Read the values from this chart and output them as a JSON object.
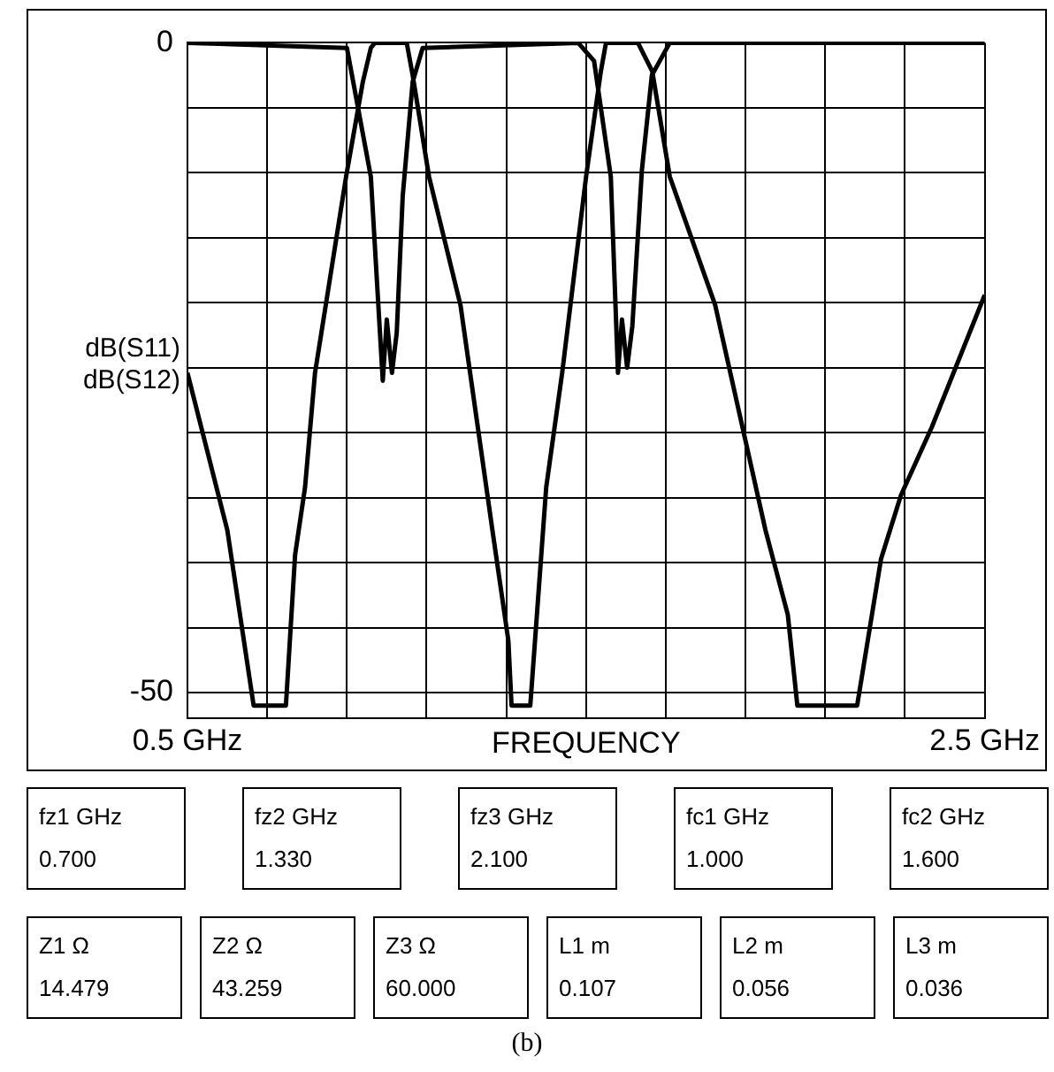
{
  "chart_data": {
    "type": "line",
    "xlabel": "FREQUENCY",
    "ylabel": "dB(S11)\ndB(S12)",
    "xlim": [
      0.5,
      2.5
    ],
    "xticks": [
      {
        "value": 0.5,
        "label": "0.5 GHz"
      },
      {
        "value": 0.7,
        "label": null
      },
      {
        "value": 0.9,
        "label": null
      },
      {
        "value": 1.1,
        "label": null
      },
      {
        "value": 1.3,
        "label": null
      },
      {
        "value": 1.5,
        "label": null
      },
      {
        "value": 1.7,
        "label": null
      },
      {
        "value": 1.9,
        "label": null
      },
      {
        "value": 2.1,
        "label": null
      },
      {
        "value": 2.3,
        "label": null
      },
      {
        "value": 2.5,
        "label": "2.5 GHz"
      }
    ],
    "ylim": [
      -52,
      0
    ],
    "yticks": [
      {
        "value": 0,
        "label": "0"
      },
      {
        "value": -5,
        "label": null
      },
      {
        "value": -10,
        "label": null
      },
      {
        "value": -15,
        "label": null
      },
      {
        "value": -20,
        "label": null
      },
      {
        "value": -25,
        "label": null
      },
      {
        "value": -30,
        "label": null
      },
      {
        "value": -35,
        "label": null
      },
      {
        "value": -40,
        "label": null
      },
      {
        "value": -45,
        "label": null
      },
      {
        "value": -50,
        "label": "-50"
      }
    ],
    "grid": true,
    "legend": false,
    "marker": "none",
    "line_style": "solid",
    "series": [
      {
        "color": "#000000",
        "x": [
          0.5,
          0.9,
          0.96,
          0.985,
          0.99,
          1.0,
          1.013,
          1.025,
          1.04,
          1.065,
          1.09,
          1.48,
          1.52,
          1.562,
          1.58,
          1.59,
          1.603,
          1.616,
          1.64,
          1.665,
          1.71,
          2.5
        ],
        "values": [
          0,
          -0.4,
          -10.3,
          -23.4,
          -26,
          -21.3,
          -25.4,
          -22.3,
          -11.8,
          -3,
          -0.4,
          0,
          -1.4,
          -10.3,
          -25.4,
          -21.3,
          -25,
          -21.8,
          -9.8,
          -2.5,
          0,
          0
        ]
      },
      {
        "color": "#000000",
        "x": [
          0.5,
          0.6,
          0.666,
          0.747,
          0.77,
          0.795,
          0.82,
          0.898,
          0.94,
          0.96,
          0.97,
          1.05,
          1.065,
          1.106,
          1.185,
          1.265,
          1.305,
          1.313,
          1.36,
          1.4,
          1.44,
          1.5,
          1.537,
          1.55,
          1.63,
          1.666,
          1.71,
          1.824,
          1.95,
          2.006,
          2.03,
          2.18,
          2.24,
          2.29,
          2.367,
          2.5
        ],
        "values": [
          -25.4,
          -37.5,
          -51,
          -51,
          -39.4,
          -34.2,
          -25.4,
          -10.3,
          -3,
          -0.4,
          0,
          0,
          -2.5,
          -10.3,
          -20.2,
          -37.5,
          -46,
          -51,
          -51,
          -34.2,
          -25.4,
          -10.3,
          -2.2,
          0,
          0,
          -2.2,
          -10.3,
          -20.2,
          -37.5,
          -44,
          -51,
          -51,
          -39.7,
          -34.8,
          -29.6,
          -19.4
        ]
      }
    ],
    "annotations": [
      "fz1  GHz\n0.700",
      "fz2  GHz\n1.330",
      "fz3  GHz\n2.100",
      "fc1  GHz\n1.000",
      "fc2  GHz\n1.600",
      "Z1  Ω\n14.479",
      "Z2  Ω\n43.259",
      "Z3  Ω\n60.000",
      "L1   m\n0.107",
      "L2   m\n0.056",
      "L3   m\n0.036",
      "(b)"
    ]
  }
}
